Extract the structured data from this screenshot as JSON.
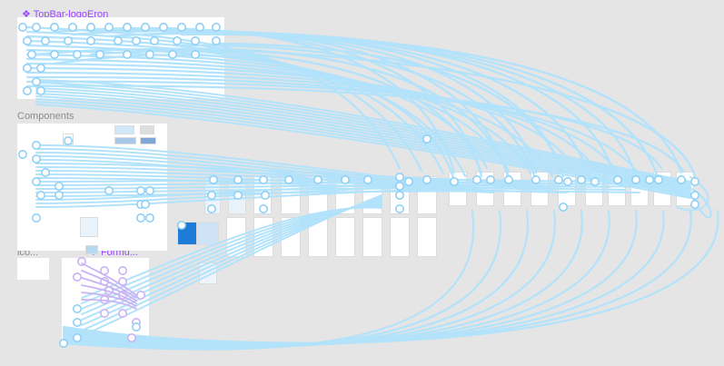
{
  "canvas": {
    "components": [
      {
        "label": "TopBar-logoEron",
        "icon": "component-icon"
      },
      {
        "label": "Formu...",
        "icon": "component-icon"
      }
    ],
    "sections": [
      {
        "label": "Components"
      },
      {
        "label": "ico..."
      }
    ]
  },
  "colors": {
    "background": "#e5e5e5",
    "connector": "#b3e2fb",
    "connector_dark": "#8fd0f5",
    "component": "#9747ff",
    "component_connector": "#c9b3f2",
    "section_label": "#8c8c8c"
  }
}
